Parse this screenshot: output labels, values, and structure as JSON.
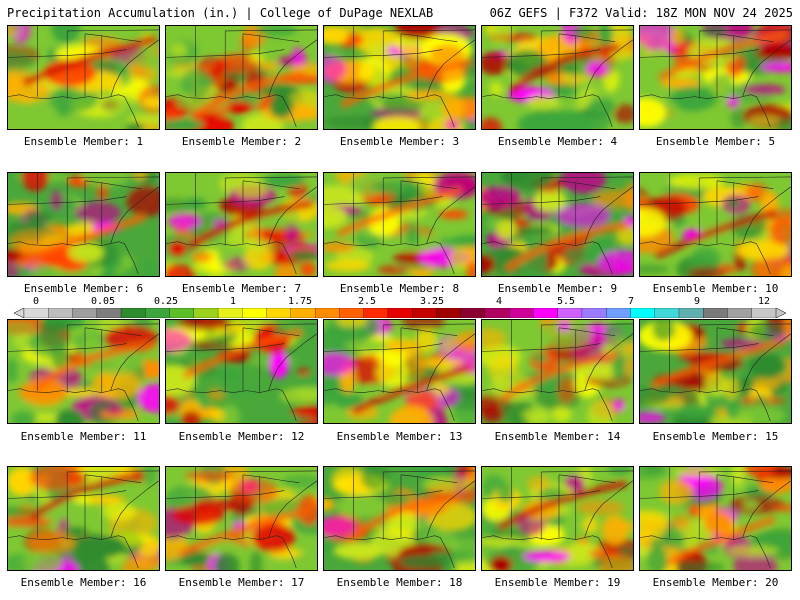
{
  "header": {
    "title": "Precipitation Accumulation (in.) | College of DuPage NEXLAB",
    "run_info": "06Z GEFS | F372 Valid: 18Z MON NOV 24 2025"
  },
  "members": [
    {
      "label": "Ensemble Member: 1"
    },
    {
      "label": "Ensemble Member: 2"
    },
    {
      "label": "Ensemble Member: 3"
    },
    {
      "label": "Ensemble Member: 4"
    },
    {
      "label": "Ensemble Member: 5"
    },
    {
      "label": "Ensemble Member: 6"
    },
    {
      "label": "Ensemble Member: 7"
    },
    {
      "label": "Ensemble Member: 8"
    },
    {
      "label": "Ensemble Member: 9"
    },
    {
      "label": "Ensemble Member: 10"
    },
    {
      "label": "Ensemble Member: 11"
    },
    {
      "label": "Ensemble Member: 12"
    },
    {
      "label": "Ensemble Member: 13"
    },
    {
      "label": "Ensemble Member: 14"
    },
    {
      "label": "Ensemble Member: 15"
    },
    {
      "label": "Ensemble Member: 16"
    },
    {
      "label": "Ensemble Member: 17"
    },
    {
      "label": "Ensemble Member: 18"
    },
    {
      "label": "Ensemble Member: 19"
    },
    {
      "label": "Ensemble Member: 20"
    }
  ],
  "legend": {
    "ticks": [
      "0",
      "0.05",
      "0.25",
      "1",
      "1.75",
      "2.5",
      "3.25",
      "4",
      "5.5",
      "7",
      "9",
      "12"
    ],
    "colors": [
      "#d9d9d9",
      "#bdbdbd",
      "#9e9e9e",
      "#7d7d7d",
      "#2e8b2e",
      "#3ca63c",
      "#5cbf2a",
      "#9bd21b",
      "#e6f21a",
      "#ffff00",
      "#ffd700",
      "#ffb000",
      "#ff8c00",
      "#ff6000",
      "#ff2a00",
      "#e60000",
      "#c40000",
      "#a00000",
      "#8b0033",
      "#b00060",
      "#d0009a",
      "#ff00ff",
      "#d060ff",
      "#9b7bff",
      "#6fa0ff",
      "#00ffff",
      "#40d8d8",
      "#60b0b0",
      "#7a7a7a",
      "#a0a0a0",
      "#c8c8c8"
    ]
  }
}
